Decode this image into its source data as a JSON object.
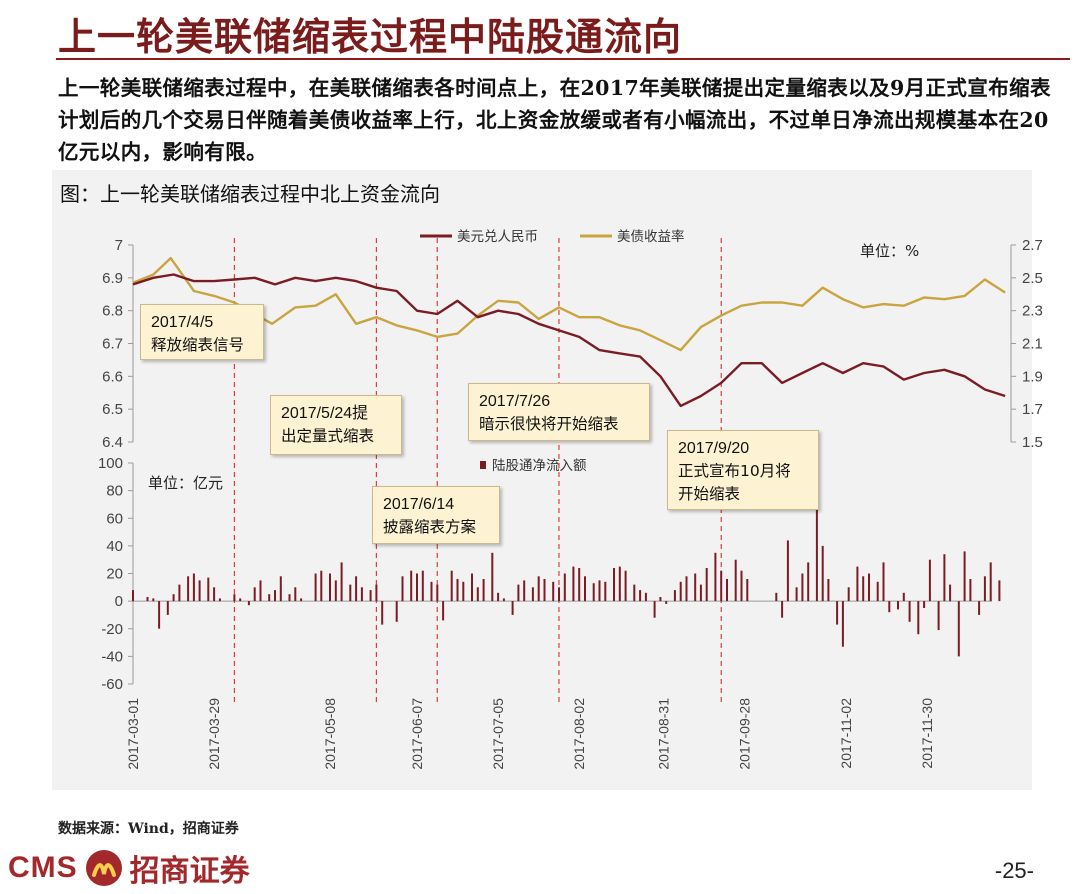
{
  "header": {
    "title": "上一轮美联储缩表过程中陆股通流向",
    "intro": "上一轮美联储缩表过程中，在美联储缩表各时间点上，在2017年美联储提出定量缩表以及9月正式宣布缩表计划后的几个交易日伴随着美债收益率上行，北上资金放缓或者有小幅流出，不过单日净流出规模基本在20亿元以内，影响有限。"
  },
  "chart_title": "图：上一轮美联储缩表过程中北上资金流向",
  "footer": {
    "source": "数据来源：Wind，招商证券",
    "logo_latin": "CMS",
    "logo_cn": "招商证券",
    "page_number": "-25-"
  },
  "colors": {
    "usdcny": "#7b1c25",
    "yield": "#c9a43f",
    "flow": "#7b1c25",
    "event_line": "#e23c3c",
    "accent": "#8b1a1a"
  },
  "chart_data": [
    {
      "type": "line",
      "unit_label": "单位：%",
      "series": [
        {
          "name": "美元兑人民币",
          "axis": "left",
          "points": [
            [
              "2017-03-01",
              6.88
            ],
            [
              "2017-03-08",
              6.9
            ],
            [
              "2017-03-15",
              6.91
            ],
            [
              "2017-03-22",
              6.89
            ],
            [
              "2017-03-29",
              6.89
            ],
            [
              "2017-04-05",
              6.895
            ],
            [
              "2017-04-12",
              6.9
            ],
            [
              "2017-04-19",
              6.88
            ],
            [
              "2017-04-26",
              6.9
            ],
            [
              "2017-05-03",
              6.89
            ],
            [
              "2017-05-10",
              6.9
            ],
            [
              "2017-05-17",
              6.89
            ],
            [
              "2017-05-24",
              6.87
            ],
            [
              "2017-05-31",
              6.86
            ],
            [
              "2017-06-07",
              6.8
            ],
            [
              "2017-06-14",
              6.79
            ],
            [
              "2017-06-21",
              6.83
            ],
            [
              "2017-06-28",
              6.78
            ],
            [
              "2017-07-05",
              6.8
            ],
            [
              "2017-07-12",
              6.79
            ],
            [
              "2017-07-19",
              6.76
            ],
            [
              "2017-07-26",
              6.74
            ],
            [
              "2017-08-02",
              6.72
            ],
            [
              "2017-08-09",
              6.68
            ],
            [
              "2017-08-16",
              6.67
            ],
            [
              "2017-08-23",
              6.66
            ],
            [
              "2017-08-30",
              6.6
            ],
            [
              "2017-09-06",
              6.51
            ],
            [
              "2017-09-13",
              6.54
            ],
            [
              "2017-09-20",
              6.58
            ],
            [
              "2017-09-27",
              6.64
            ],
            [
              "2017-10-04",
              6.64
            ],
            [
              "2017-10-11",
              6.58
            ],
            [
              "2017-10-18",
              6.61
            ],
            [
              "2017-10-25",
              6.64
            ],
            [
              "2017-11-01",
              6.61
            ],
            [
              "2017-11-08",
              6.64
            ],
            [
              "2017-11-15",
              6.63
            ],
            [
              "2017-11-22",
              6.59
            ],
            [
              "2017-11-29",
              6.61
            ],
            [
              "2017-12-06",
              6.62
            ],
            [
              "2017-12-13",
              6.6
            ],
            [
              "2017-12-20",
              6.56
            ],
            [
              "2017-12-27",
              6.54
            ]
          ]
        },
        {
          "name": "美债收益率",
          "axis": "right",
          "points": [
            [
              "2017-03-01",
              2.47
            ],
            [
              "2017-03-08",
              2.52
            ],
            [
              "2017-03-14",
              2.62
            ],
            [
              "2017-03-22",
              2.42
            ],
            [
              "2017-03-29",
              2.39
            ],
            [
              "2017-04-05",
              2.35
            ],
            [
              "2017-04-12",
              2.28
            ],
            [
              "2017-04-18",
              2.22
            ],
            [
              "2017-04-26",
              2.32
            ],
            [
              "2017-05-03",
              2.33
            ],
            [
              "2017-05-10",
              2.4
            ],
            [
              "2017-05-17",
              2.22
            ],
            [
              "2017-05-24",
              2.26
            ],
            [
              "2017-05-31",
              2.21
            ],
            [
              "2017-06-07",
              2.18
            ],
            [
              "2017-06-14",
              2.14
            ],
            [
              "2017-06-21",
              2.16
            ],
            [
              "2017-06-28",
              2.27
            ],
            [
              "2017-07-05",
              2.36
            ],
            [
              "2017-07-12",
              2.35
            ],
            [
              "2017-07-19",
              2.25
            ],
            [
              "2017-07-26",
              2.32
            ],
            [
              "2017-08-02",
              2.26
            ],
            [
              "2017-08-09",
              2.26
            ],
            [
              "2017-08-16",
              2.21
            ],
            [
              "2017-08-23",
              2.18
            ],
            [
              "2017-08-30",
              2.12
            ],
            [
              "2017-09-06",
              2.06
            ],
            [
              "2017-09-13",
              2.2
            ],
            [
              "2017-09-20",
              2.27
            ],
            [
              "2017-09-27",
              2.33
            ],
            [
              "2017-10-04",
              2.35
            ],
            [
              "2017-10-11",
              2.35
            ],
            [
              "2017-10-18",
              2.33
            ],
            [
              "2017-10-25",
              2.44
            ],
            [
              "2017-11-01",
              2.37
            ],
            [
              "2017-11-08",
              2.32
            ],
            [
              "2017-11-15",
              2.34
            ],
            [
              "2017-11-22",
              2.33
            ],
            [
              "2017-11-29",
              2.38
            ],
            [
              "2017-12-06",
              2.37
            ],
            [
              "2017-12-13",
              2.39
            ],
            [
              "2017-12-20",
              2.49
            ],
            [
              "2017-12-27",
              2.41
            ]
          ]
        }
      ],
      "left_axis": {
        "range": [
          6.4,
          7.0
        ],
        "ticks": [
          "7",
          "6.9",
          "6.8",
          "6.7",
          "6.6",
          "6.5",
          "6.4"
        ]
      },
      "right_axis": {
        "range": [
          1.5,
          2.7
        ],
        "ticks": [
          "2.7",
          "2.5",
          "2.3",
          "2.1",
          "1.9",
          "1.7",
          "1.5"
        ]
      },
      "legend_position": "top-center"
    },
    {
      "type": "bar",
      "unit_label": "单位：亿元",
      "series": [
        {
          "name": "陆股通净流入额",
          "x": [
            "2017-03-01",
            "2017-03-06",
            "2017-03-08",
            "2017-03-10",
            "2017-03-13",
            "2017-03-15",
            "2017-03-17",
            "2017-03-20",
            "2017-03-22",
            "2017-03-24",
            "2017-03-27",
            "2017-03-29",
            "2017-03-31",
            "2017-04-05",
            "2017-04-07",
            "2017-04-10",
            "2017-04-12",
            "2017-04-14",
            "2017-04-17",
            "2017-04-19",
            "2017-04-21",
            "2017-04-24",
            "2017-04-26",
            "2017-04-28",
            "2017-05-03",
            "2017-05-05",
            "2017-05-08",
            "2017-05-10",
            "2017-05-12",
            "2017-05-15",
            "2017-05-17",
            "2017-05-19",
            "2017-05-22",
            "2017-05-24",
            "2017-05-26",
            "2017-05-31",
            "2017-06-02",
            "2017-06-05",
            "2017-06-07",
            "2017-06-09",
            "2017-06-12",
            "2017-06-14",
            "2017-06-16",
            "2017-06-19",
            "2017-06-21",
            "2017-06-23",
            "2017-06-26",
            "2017-06-28",
            "2017-06-30",
            "2017-07-03",
            "2017-07-05",
            "2017-07-07",
            "2017-07-10",
            "2017-07-12",
            "2017-07-14",
            "2017-07-17",
            "2017-07-19",
            "2017-07-21",
            "2017-07-24",
            "2017-07-26",
            "2017-07-28",
            "2017-07-31",
            "2017-08-02",
            "2017-08-04",
            "2017-08-07",
            "2017-08-09",
            "2017-08-11",
            "2017-08-14",
            "2017-08-16",
            "2017-08-18",
            "2017-08-21",
            "2017-08-23",
            "2017-08-25",
            "2017-08-28",
            "2017-08-30",
            "2017-09-01",
            "2017-09-04",
            "2017-09-06",
            "2017-09-08",
            "2017-09-11",
            "2017-09-13",
            "2017-09-15",
            "2017-09-18",
            "2017-09-20",
            "2017-09-22",
            "2017-09-25",
            "2017-09-27",
            "2017-09-29",
            "2017-10-09",
            "2017-10-11",
            "2017-10-13",
            "2017-10-16",
            "2017-10-18",
            "2017-10-20",
            "2017-10-23",
            "2017-10-25",
            "2017-10-27",
            "2017-10-30",
            "2017-11-01",
            "2017-11-03",
            "2017-11-06",
            "2017-11-08",
            "2017-11-10",
            "2017-11-13",
            "2017-11-15",
            "2017-11-17",
            "2017-11-20",
            "2017-11-22",
            "2017-11-24",
            "2017-11-27",
            "2017-11-29",
            "2017-12-01",
            "2017-12-04",
            "2017-12-06",
            "2017-12-08",
            "2017-12-11",
            "2017-12-13",
            "2017-12-15",
            "2017-12-18",
            "2017-12-20",
            "2017-12-22",
            "2017-12-25"
          ],
          "values": [
            8,
            3,
            2,
            -20,
            -10,
            5,
            12,
            18,
            20,
            15,
            17,
            10,
            2,
            5,
            2,
            -3,
            10,
            15,
            5,
            8,
            18,
            5,
            10,
            2,
            20,
            22,
            20,
            15,
            28,
            12,
            18,
            10,
            8,
            12,
            -17,
            -15,
            18,
            22,
            20,
            22,
            14,
            12,
            -14,
            22,
            16,
            14,
            20,
            10,
            16,
            35,
            6,
            2,
            -10,
            12,
            15,
            10,
            18,
            16,
            14,
            10,
            20,
            25,
            24,
            18,
            13,
            15,
            14,
            24,
            25,
            22,
            12,
            8,
            6,
            -12,
            3,
            -2,
            8,
            14,
            18,
            20,
            12,
            24,
            35,
            22,
            16,
            30,
            22,
            16,
            6,
            -12,
            44,
            10,
            20,
            28,
            68,
            40,
            16,
            -17,
            -33,
            10,
            25,
            18,
            20,
            14,
            28,
            -8,
            -6,
            6,
            -15,
            -24,
            -5,
            30,
            -21,
            34,
            12,
            -40,
            36,
            16,
            -10,
            18,
            28,
            15
          ]
        }
      ],
      "y_axis": {
        "range": [
          -60,
          100
        ],
        "ticks": [
          "100",
          "80",
          "60",
          "40",
          "20",
          "0",
          "-20",
          "-40",
          "-60"
        ]
      },
      "x_ticks": [
        "2017-03-01",
        "2017-03-29",
        "2017-05-08",
        "2017-06-07",
        "2017-07-05",
        "2017-08-02",
        "2017-08-31",
        "2017-09-28",
        "2017-11-02",
        "2017-11-30"
      ],
      "legend_position": "top-center"
    }
  ],
  "events": [
    {
      "date": "2017-04-05",
      "label_date": "2017/4/5",
      "label_text": "释放缩表信号"
    },
    {
      "date": "2017-05-24",
      "label_date": "2017/5/24提",
      "label_text": "出定量式缩表"
    },
    {
      "date": "2017-06-14",
      "label_date": "2017/6/14",
      "label_text": "披露缩表方案"
    },
    {
      "date": "2017-07-26",
      "label_date": "2017/7/26",
      "label_text": "暗示很快将开始缩表"
    },
    {
      "date": "2017-09-20",
      "label_date": "2017/9/20",
      "label_text": "正式宣布10月将",
      "label_text2": "开始缩表"
    }
  ]
}
